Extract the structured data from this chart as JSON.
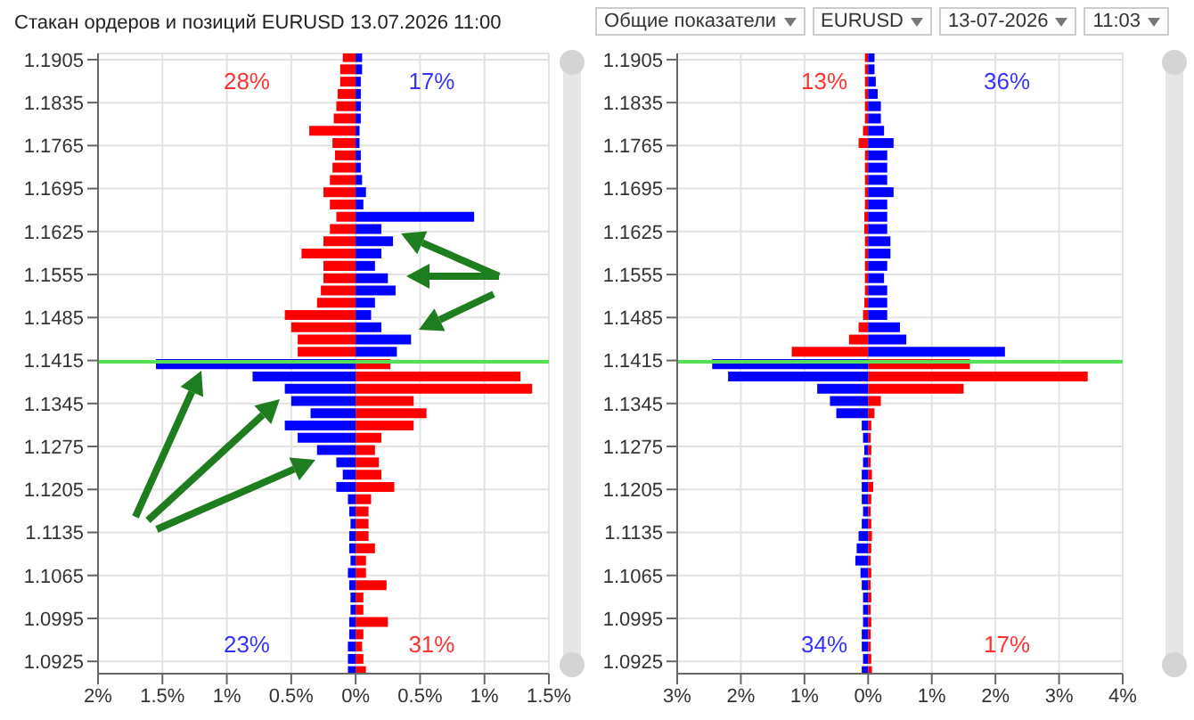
{
  "chart_data": [
    {
      "type": "bar",
      "orientation": "horizontal",
      "stacked": true,
      "title": "Стакан ордеров и позиций EURUSD 13.07.2026 11:00",
      "x": [
        1.191,
        1.189,
        1.187,
        1.185,
        1.183,
        1.181,
        1.179,
        1.177,
        1.175,
        1.173,
        1.171,
        1.169,
        1.167,
        1.165,
        1.163,
        1.161,
        1.159,
        1.157,
        1.155,
        1.153,
        1.151,
        1.149,
        1.147,
        1.145,
        1.143,
        1.141,
        1.139,
        1.137,
        1.135,
        1.133,
        1.131,
        1.129,
        1.127,
        1.125,
        1.123,
        1.121,
        1.119,
        1.117,
        1.115,
        1.113,
        1.111,
        1.109,
        1.107,
        1.105,
        1.103,
        1.101,
        1.099,
        1.097,
        1.095,
        1.093,
        1.091
      ],
      "series": [
        {
          "color": "#ff0000",
          "values": [
            -0.1,
            -0.12,
            -0.12,
            -0.14,
            -0.15,
            -0.17,
            -0.36,
            -0.18,
            -0.16,
            -0.18,
            -0.2,
            -0.25,
            -0.2,
            -0.15,
            -0.2,
            -0.25,
            -0.42,
            -0.25,
            -0.25,
            -0.27,
            -0.3,
            -0.55,
            -0.5,
            -0.45,
            -0.45,
            0.27,
            1.28,
            1.37,
            0.45,
            0.55,
            0.45,
            0.2,
            0.15,
            0.18,
            0.2,
            0.3,
            0.12,
            0.1,
            0.1,
            0.1,
            0.15,
            0.08,
            0.08,
            0.24,
            0.06,
            0.06,
            0.25,
            0.06,
            0.05,
            0.06,
            0.08
          ]
        },
        {
          "color": "#0000ff",
          "values": [
            0.05,
            0.05,
            0.04,
            0.04,
            0.04,
            0.04,
            0.03,
            0.03,
            0.04,
            0.04,
            0.05,
            0.08,
            0.06,
            0.92,
            0.2,
            0.29,
            0.2,
            0.15,
            0.25,
            0.31,
            0.15,
            0.12,
            0.2,
            0.43,
            0.32,
            -1.55,
            -0.8,
            -0.55,
            -0.5,
            -0.35,
            -0.55,
            -0.45,
            -0.3,
            -0.15,
            -0.1,
            -0.15,
            -0.06,
            -0.05,
            -0.04,
            -0.05,
            -0.05,
            -0.04,
            -0.06,
            -0.05,
            -0.04,
            -0.04,
            -0.05,
            -0.05,
            -0.06,
            -0.06,
            -0.06
          ]
        }
      ],
      "xlim": [
        -2,
        1.5
      ],
      "xticks": [
        {
          "value": -2,
          "label": "2%"
        },
        {
          "value": -1.5,
          "label": "1.5%"
        },
        {
          "value": -1,
          "label": "1%"
        },
        {
          "value": -0.5,
          "label": "0.5%"
        },
        {
          "value": 0,
          "label": "0%"
        },
        {
          "value": 0.5,
          "label": "0.5%"
        },
        {
          "value": 1,
          "label": "1%"
        },
        {
          "value": 1.5,
          "label": "1.5%"
        }
      ],
      "ylim": [
        1.0905,
        1.1915
      ],
      "yticks": [
        1.0925,
        1.0995,
        1.1065,
        1.1135,
        1.1205,
        1.1275,
        1.1345,
        1.1415,
        1.1485,
        1.1555,
        1.1625,
        1.1695,
        1.1765,
        1.1835,
        1.1905
      ],
      "grid": true,
      "ref_lines": [
        {
          "axis": "y",
          "value": 1.1413,
          "color": "#55e055"
        }
      ],
      "annotations": [
        "28%",
        "17%",
        "23%",
        "31%"
      ]
    },
    {
      "type": "bar",
      "orientation": "horizontal",
      "stacked": true,
      "x": [
        1.191,
        1.189,
        1.187,
        1.185,
        1.183,
        1.181,
        1.179,
        1.177,
        1.175,
        1.173,
        1.171,
        1.169,
        1.167,
        1.165,
        1.163,
        1.161,
        1.159,
        1.157,
        1.155,
        1.153,
        1.151,
        1.149,
        1.147,
        1.145,
        1.143,
        1.141,
        1.139,
        1.137,
        1.135,
        1.133,
        1.131,
        1.129,
        1.127,
        1.125,
        1.123,
        1.121,
        1.119,
        1.117,
        1.115,
        1.113,
        1.111,
        1.109,
        1.107,
        1.105,
        1.103,
        1.101,
        1.099,
        1.097,
        1.095,
        1.093,
        1.091
      ],
      "series": [
        {
          "color": "#ff0000",
          "values": [
            -0.05,
            -0.05,
            -0.05,
            -0.05,
            -0.05,
            -0.05,
            -0.08,
            -0.15,
            -0.05,
            -0.05,
            -0.05,
            -0.05,
            -0.05,
            -0.06,
            -0.06,
            -0.05,
            -0.05,
            -0.05,
            -0.05,
            -0.05,
            -0.06,
            -0.08,
            -0.15,
            -0.3,
            -1.2,
            1.6,
            3.45,
            1.5,
            0.2,
            0.1,
            0.05,
            0.04,
            0.05,
            0.04,
            0.06,
            0.08,
            0.05,
            0.04,
            0.05,
            0.06,
            0.05,
            0.04,
            0.05,
            0.04,
            0.05,
            0.04,
            0.05,
            0.04,
            0.04,
            0.05,
            0.06
          ]
        },
        {
          "color": "#0000ff",
          "values": [
            0.1,
            0.1,
            0.12,
            0.15,
            0.2,
            0.2,
            0.25,
            0.4,
            0.3,
            0.3,
            0.3,
            0.4,
            0.3,
            0.3,
            0.3,
            0.35,
            0.35,
            0.3,
            0.25,
            0.3,
            0.3,
            0.3,
            0.5,
            0.6,
            2.15,
            -2.45,
            -2.2,
            -0.8,
            -0.6,
            -0.5,
            -0.1,
            -0.08,
            -0.06,
            -0.08,
            -0.1,
            -0.1,
            -0.1,
            -0.08,
            -0.1,
            -0.15,
            -0.18,
            -0.2,
            -0.12,
            -0.1,
            -0.08,
            -0.08,
            -0.08,
            -0.1,
            -0.1,
            -0.08,
            -0.1
          ]
        }
      ],
      "xlim": [
        -3,
        4
      ],
      "xticks": [
        {
          "value": -3,
          "label": "3%"
        },
        {
          "value": -2,
          "label": "2%"
        },
        {
          "value": -1,
          "label": "1%"
        },
        {
          "value": 0,
          "label": "0%"
        },
        {
          "value": 1,
          "label": "1%"
        },
        {
          "value": 2,
          "label": "2%"
        },
        {
          "value": 3,
          "label": "3%"
        },
        {
          "value": 4,
          "label": "4%"
        }
      ],
      "ylim": [
        1.0905,
        1.1915
      ],
      "yticks": [
        1.0925,
        1.0995,
        1.1065,
        1.1135,
        1.1205,
        1.1275,
        1.1345,
        1.1415,
        1.1485,
        1.1555,
        1.1625,
        1.1695,
        1.1765,
        1.1835,
        1.1905
      ],
      "grid": true,
      "ref_lines": [
        {
          "axis": "y",
          "value": 1.1413,
          "color": "#55e055"
        }
      ],
      "annotations": [
        "13%",
        "36%",
        "34%",
        "17%",
        "Общие показатели",
        "EURUSD",
        "13-07-2026",
        "11:03"
      ]
    }
  ]
}
